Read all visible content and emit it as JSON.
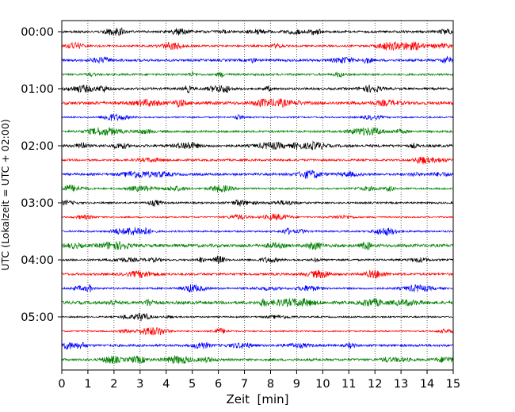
{
  "chart_data": {
    "type": "line",
    "title": "",
    "xlabel": "Zeit  [min]",
    "ylabel": "UTC (Lokalzeit = UTC + 02:00)",
    "xlim": [
      0,
      15
    ],
    "x_ticks": [
      "0",
      "1",
      "2",
      "3",
      "4",
      "5",
      "6",
      "7",
      "8",
      "9",
      "10",
      "11",
      "12",
      "13",
      "14",
      "15"
    ],
    "y_ticks": [
      "00:00",
      "01:00",
      "02:00",
      "03:00",
      "04:00",
      "05:00"
    ],
    "grid": "vertical dotted at each minute",
    "row_interval_minutes": 15,
    "row_count": 24,
    "colors_cycle": [
      "#000000",
      "#ff0000",
      "#0000ff",
      "#008000"
    ],
    "series": [
      {
        "start": "00:00",
        "color": "#000000"
      },
      {
        "start": "00:15",
        "color": "#ff0000"
      },
      {
        "start": "00:30",
        "color": "#0000ff"
      },
      {
        "start": "00:45",
        "color": "#008000"
      },
      {
        "start": "01:00",
        "color": "#000000"
      },
      {
        "start": "01:15",
        "color": "#ff0000"
      },
      {
        "start": "01:30",
        "color": "#0000ff"
      },
      {
        "start": "01:45",
        "color": "#008000"
      },
      {
        "start": "02:00",
        "color": "#000000"
      },
      {
        "start": "02:15",
        "color": "#ff0000"
      },
      {
        "start": "02:30",
        "color": "#0000ff"
      },
      {
        "start": "02:45",
        "color": "#008000"
      },
      {
        "start": "03:00",
        "color": "#000000"
      },
      {
        "start": "03:15",
        "color": "#ff0000"
      },
      {
        "start": "03:30",
        "color": "#0000ff"
      },
      {
        "start": "03:45",
        "color": "#008000"
      },
      {
        "start": "04:00",
        "color": "#000000"
      },
      {
        "start": "04:15",
        "color": "#ff0000"
      },
      {
        "start": "04:30",
        "color": "#0000ff"
      },
      {
        "start": "04:45",
        "color": "#008000"
      },
      {
        "start": "05:00",
        "color": "#000000"
      },
      {
        "start": "05:15",
        "color": "#ff0000"
      },
      {
        "start": "05:30",
        "color": "#0000ff"
      },
      {
        "start": "05:45",
        "color": "#008000"
      }
    ]
  }
}
